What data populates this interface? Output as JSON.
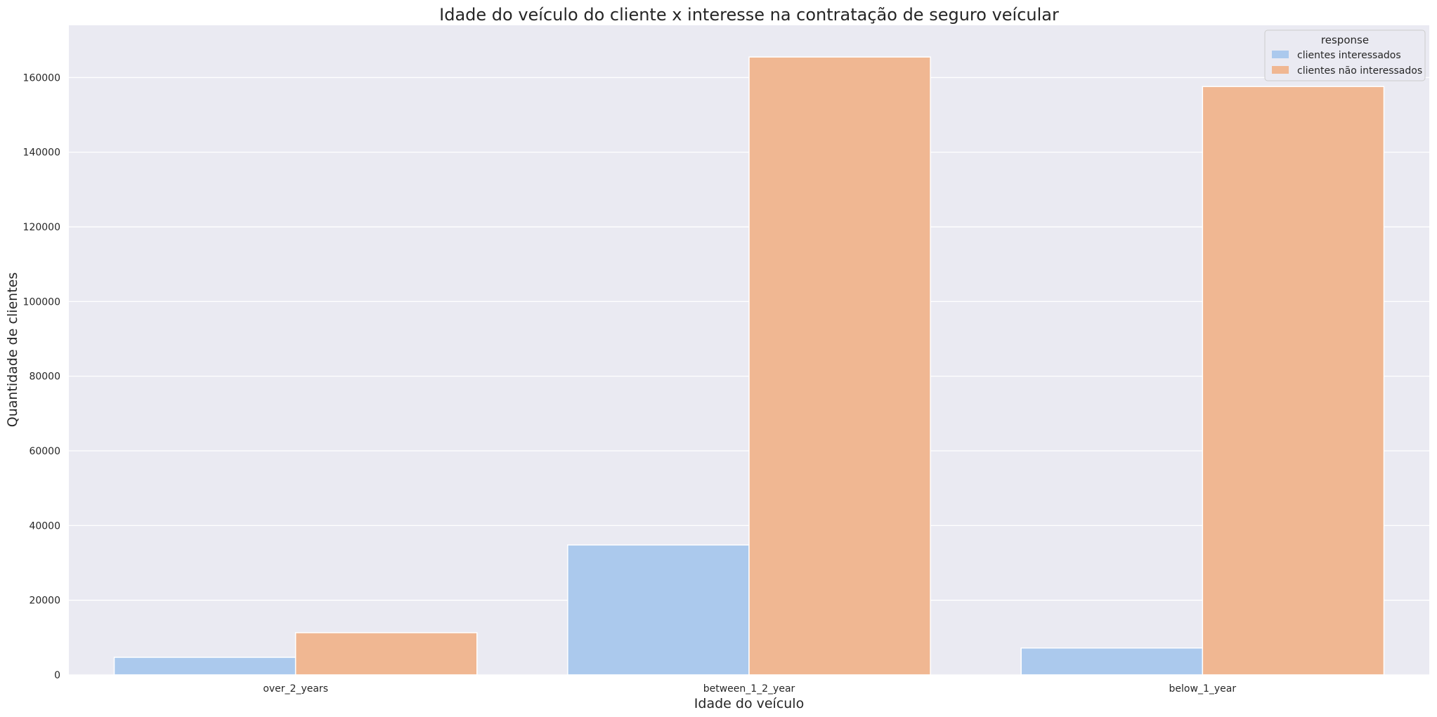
{
  "chart_data": {
    "type": "bar",
    "title": "Idade do veículo do cliente x interesse na contratação de seguro veícular",
    "xlabel": "Idade do veículo",
    "ylabel": "Quantidade de clientes",
    "categories": [
      "over_2_years",
      "between_1_2_year",
      "below_1_year"
    ],
    "series": [
      {
        "name": "clientes interessados",
        "color": "#abc9ed",
        "values": [
          4700,
          34800,
          7200
        ]
      },
      {
        "name": "clientes não interessados",
        "color": "#f0b792",
        "values": [
          11300,
          165500,
          157600
        ]
      }
    ],
    "ylim": [
      0,
      174000
    ],
    "yticks": [
      0,
      20000,
      40000,
      60000,
      80000,
      100000,
      120000,
      140000,
      160000
    ],
    "ytick_labels": [
      "0",
      "20000",
      "40000",
      "60000",
      "80000",
      "100000",
      "120000",
      "140000",
      "160000"
    ],
    "grid": true,
    "plot_background": "#eaeaf2",
    "legend": {
      "title": "response",
      "placement": "top-right"
    }
  }
}
